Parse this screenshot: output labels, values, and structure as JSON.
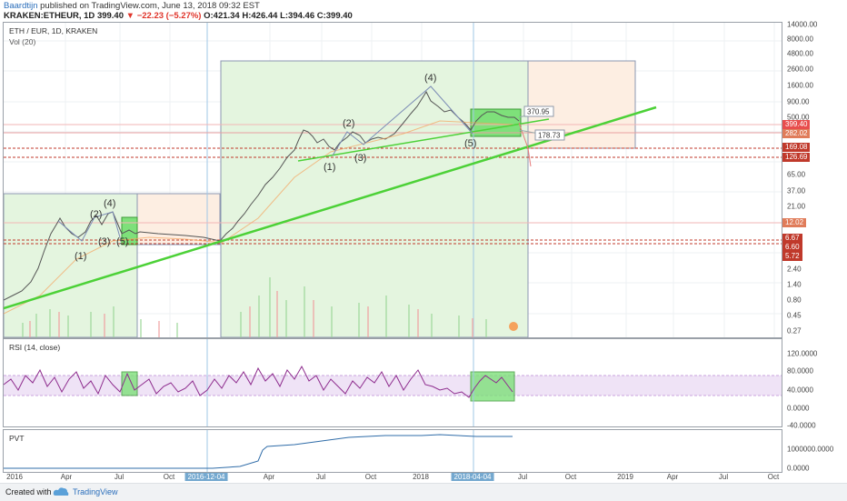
{
  "header": {
    "author": "Baardtijn",
    "published": "published on TradingView.com, June 13, 2018 09:32 EST",
    "symbol": "KRAKEN:ETHEUR, 1D",
    "last": "399.40",
    "change": "−22.23 (−5.27%)",
    "ohlc": "O:421.34 H:426.44 L:394.46 C:399.40"
  },
  "main_pane": {
    "title": "ETH / EUR, 1D, KRAKEN",
    "volume_label": "Vol (20)",
    "price_axis": [
      "14000.00",
      "8000.00",
      "4800.00",
      "2600.00",
      "1600.00",
      "900.00",
      "500.00",
      "282.02",
      "169.08",
      "126.69",
      "65.00",
      "37.00",
      "21.00",
      "12.02",
      "6.67",
      "6.60",
      "5.72",
      "2.40",
      "1.40",
      "0.80",
      "0.45",
      "0.27"
    ],
    "price_boxes": [
      {
        "label": "399.40",
        "color": "#e84d4d"
      },
      {
        "label": "282.02",
        "color": "#e07c5a"
      },
      {
        "label": "169.08",
        "color": "#c0392b"
      },
      {
        "label": "126.69",
        "color": "#c0392b"
      },
      {
        "label": "12.02",
        "color": "#e07c5a"
      },
      {
        "label": "6.67",
        "color": "#c0392b"
      },
      {
        "label": "6.60",
        "color": "#c0392b"
      },
      {
        "label": "5.72",
        "color": "#c0392b"
      }
    ],
    "wave_labels": [
      "(1)",
      "(2)",
      "(3)",
      "(4)",
      "(5)",
      "(1)",
      "(2)",
      "(3)",
      "(4)",
      "(5)"
    ],
    "callouts": [
      "370.95",
      "178.73"
    ]
  },
  "rsi_pane": {
    "title": "RSI (14, close)",
    "axis": [
      "120.0000",
      "80.0000",
      "40.0000",
      "0.0000",
      "-40.0000"
    ]
  },
  "pvt_pane": {
    "title": "PVT",
    "axis": [
      "1000000.0000",
      "0.0000"
    ]
  },
  "time_axis": {
    "labels": [
      "2016",
      "Apr",
      "Jul",
      "Oct",
      "2016-12-04",
      "Apr",
      "Jul",
      "Oct",
      "2018",
      "2018-04-04",
      "Jul",
      "Oct",
      "2019",
      "Apr",
      "Jul",
      "Oct"
    ]
  },
  "footer": {
    "created": "Created with",
    "brand": "TradingView"
  },
  "colors": {
    "green_line": "#4cd137",
    "rsi_line": "#8e2d8e",
    "pvt_line": "#2f6ca8",
    "box_green": "#d6f2cf",
    "box_orange": "#fde6d2"
  }
}
